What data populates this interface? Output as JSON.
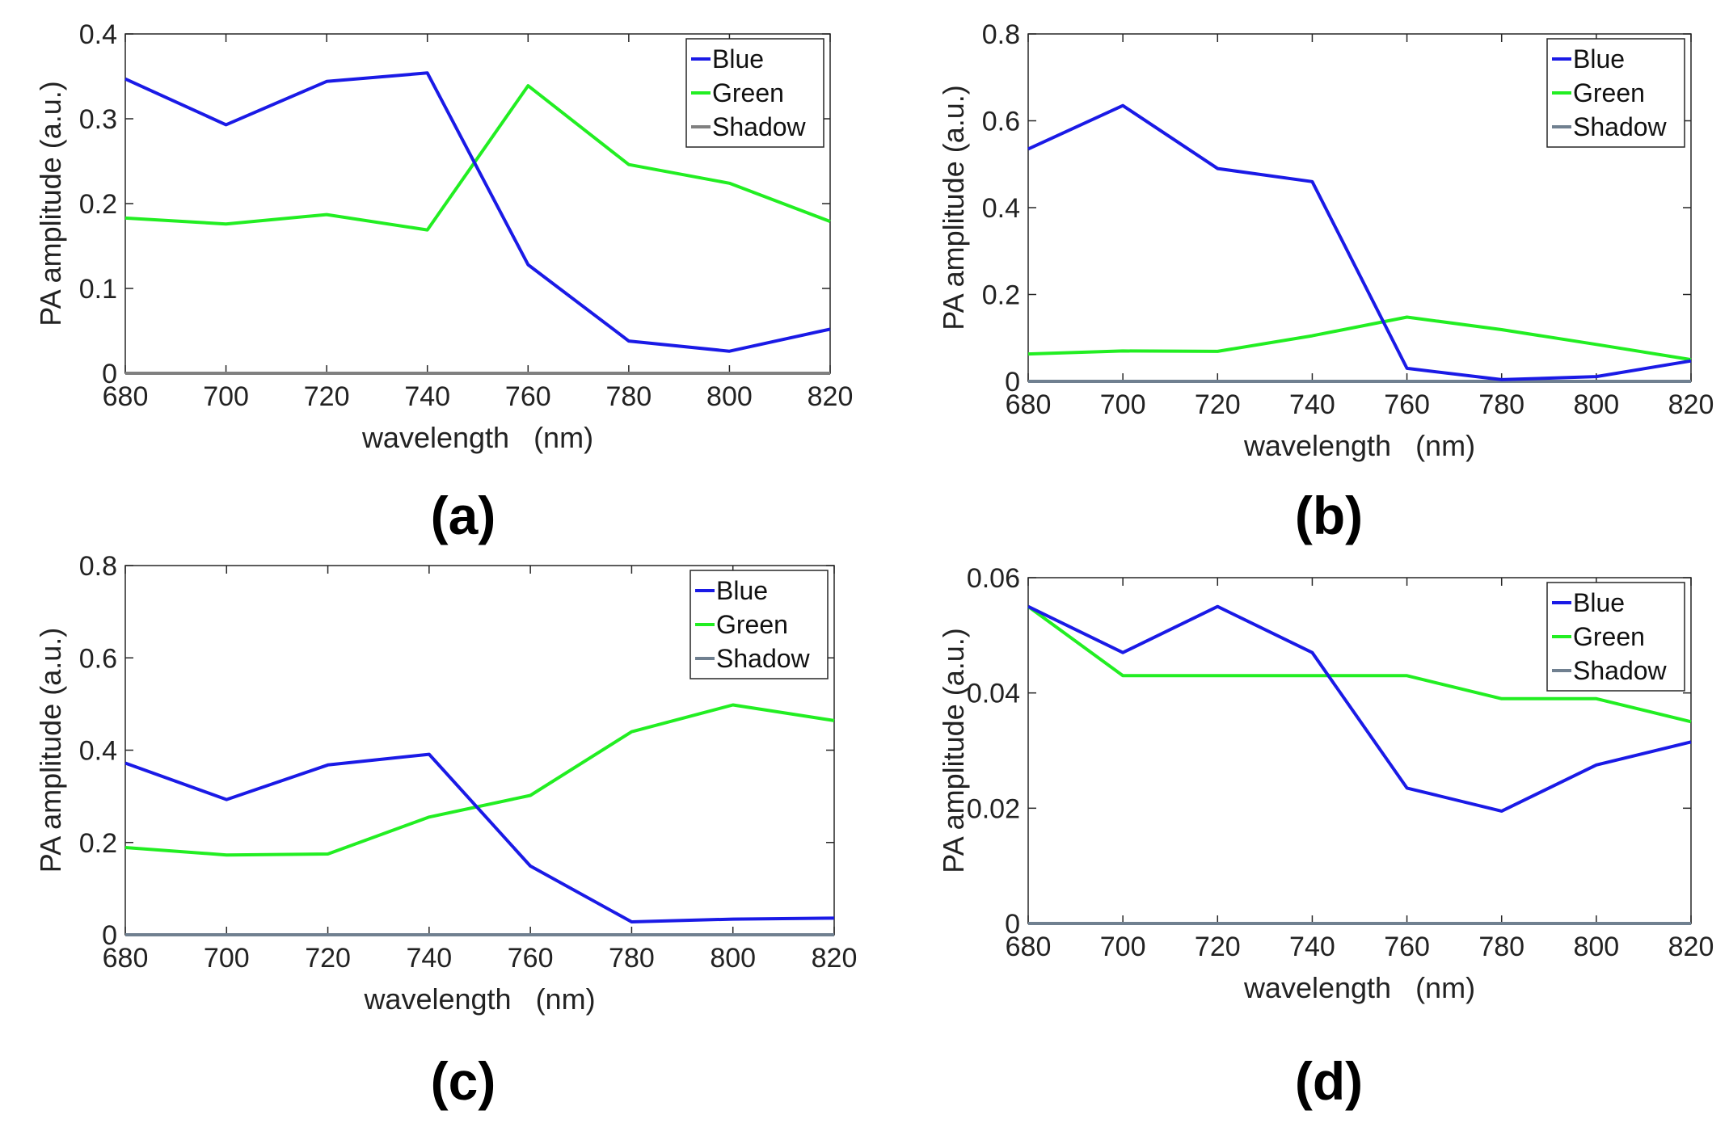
{
  "chart_data": [
    {
      "type": "line",
      "panel_label": "(a)",
      "xlabel": "wavelength   (nm)",
      "ylabel": "PA amplitude (a.u.)",
      "x": [
        680,
        700,
        720,
        740,
        760,
        780,
        800,
        820
      ],
      "xticks": [
        "680",
        "700",
        "720",
        "740",
        "760",
        "780",
        "800",
        "820"
      ],
      "xlim": [
        680,
        820
      ],
      "ylim": [
        0,
        0.4
      ],
      "yticks": [
        0,
        0.1,
        0.2,
        0.3,
        0.4
      ],
      "ytick_labels": [
        "0",
        "0.1",
        "0.2",
        "0.3",
        "0.4"
      ],
      "legend_position": "top-right",
      "series": [
        {
          "name": "Blue",
          "color": "#1a1ae6",
          "values": [
            0.347,
            0.293,
            0.344,
            0.354,
            0.128,
            0.038,
            0.026,
            0.052
          ]
        },
        {
          "name": "Green",
          "color": "#22ee22",
          "values": [
            0.183,
            0.176,
            0.187,
            0.169,
            0.339,
            0.246,
            0.224,
            0.179
          ]
        },
        {
          "name": "Shadow",
          "color": "#808080",
          "values": [
            0,
            0,
            0,
            0,
            0,
            0,
            0,
            0
          ]
        }
      ]
    },
    {
      "type": "line",
      "panel_label": "(b)",
      "xlabel": "wavelength   (nm)",
      "ylabel": "PA amplitude (a.u.)",
      "x": [
        680,
        700,
        720,
        740,
        760,
        780,
        800,
        820
      ],
      "xticks": [
        "680",
        "700",
        "720",
        "740",
        "760",
        "780",
        "800",
        "820"
      ],
      "xlim": [
        680,
        820
      ],
      "ylim": [
        0,
        0.8
      ],
      "yticks": [
        0,
        0.2,
        0.4,
        0.6,
        0.8
      ],
      "ytick_labels": [
        "0",
        "0.2",
        "0.4",
        "0.6",
        "0.8"
      ],
      "legend_position": "top-right",
      "series": [
        {
          "name": "Blue",
          "color": "#1a1ae6",
          "values": [
            0.535,
            0.635,
            0.49,
            0.46,
            0.03,
            0.004,
            0.011,
            0.047
          ]
        },
        {
          "name": "Green",
          "color": "#22ee22",
          "values": [
            0.063,
            0.07,
            0.069,
            0.105,
            0.148,
            0.119,
            0.085,
            0.05
          ]
        },
        {
          "name": "Shadow",
          "color": "#708090",
          "values": [
            0,
            0,
            0,
            0,
            0,
            0,
            0,
            0
          ]
        }
      ]
    },
    {
      "type": "line",
      "panel_label": "(c)",
      "xlabel": "wavelength   (nm)",
      "ylabel": "PA amplitude (a.u.)",
      "x": [
        680,
        700,
        720,
        740,
        760,
        780,
        800,
        820
      ],
      "xticks": [
        "680",
        "700",
        "720",
        "740",
        "760",
        "780",
        "800",
        "820"
      ],
      "xlim": [
        680,
        820
      ],
      "ylim": [
        0,
        0.8
      ],
      "yticks": [
        0,
        0.2,
        0.4,
        0.6,
        0.8
      ],
      "ytick_labels": [
        "0",
        "0.2",
        "0.4",
        "0.6",
        "0.8"
      ],
      "legend_position": "top-right",
      "series": [
        {
          "name": "Blue",
          "color": "#1a1ae6",
          "values": [
            0.372,
            0.293,
            0.368,
            0.391,
            0.149,
            0.028,
            0.034,
            0.036
          ]
        },
        {
          "name": "Green",
          "color": "#22ee22",
          "values": [
            0.189,
            0.173,
            0.175,
            0.255,
            0.302,
            0.44,
            0.498,
            0.464
          ]
        },
        {
          "name": "Shadow",
          "color": "#708090",
          "values": [
            0,
            0,
            0,
            0,
            0,
            0,
            0,
            0
          ]
        }
      ]
    },
    {
      "type": "line",
      "panel_label": "(d)",
      "xlabel": "wavelength   (nm)",
      "ylabel": "PA amplitude (a.u.)",
      "x": [
        680,
        700,
        720,
        740,
        760,
        780,
        800,
        820
      ],
      "xticks": [
        "680",
        "700",
        "720",
        "740",
        "760",
        "780",
        "800",
        "820"
      ],
      "xlim": [
        680,
        820
      ],
      "ylim": [
        0,
        0.06
      ],
      "yticks": [
        0,
        0.02,
        0.04,
        0.06
      ],
      "ytick_labels": [
        "0",
        "0.02",
        "0.04",
        "0.06"
      ],
      "legend_position": "top-right",
      "series": [
        {
          "name": "Blue",
          "color": "#1a1ae6",
          "values": [
            0.055,
            0.047,
            0.055,
            0.047,
            0.0235,
            0.0195,
            0.0275,
            0.0315
          ]
        },
        {
          "name": "Green",
          "color": "#22ee22",
          "values": [
            0.055,
            0.043,
            0.043,
            0.043,
            0.043,
            0.039,
            0.039,
            0.035
          ]
        },
        {
          "name": "Shadow",
          "color": "#708090",
          "values": [
            0,
            0,
            0,
            0,
            0,
            0,
            0,
            0
          ]
        }
      ]
    }
  ]
}
